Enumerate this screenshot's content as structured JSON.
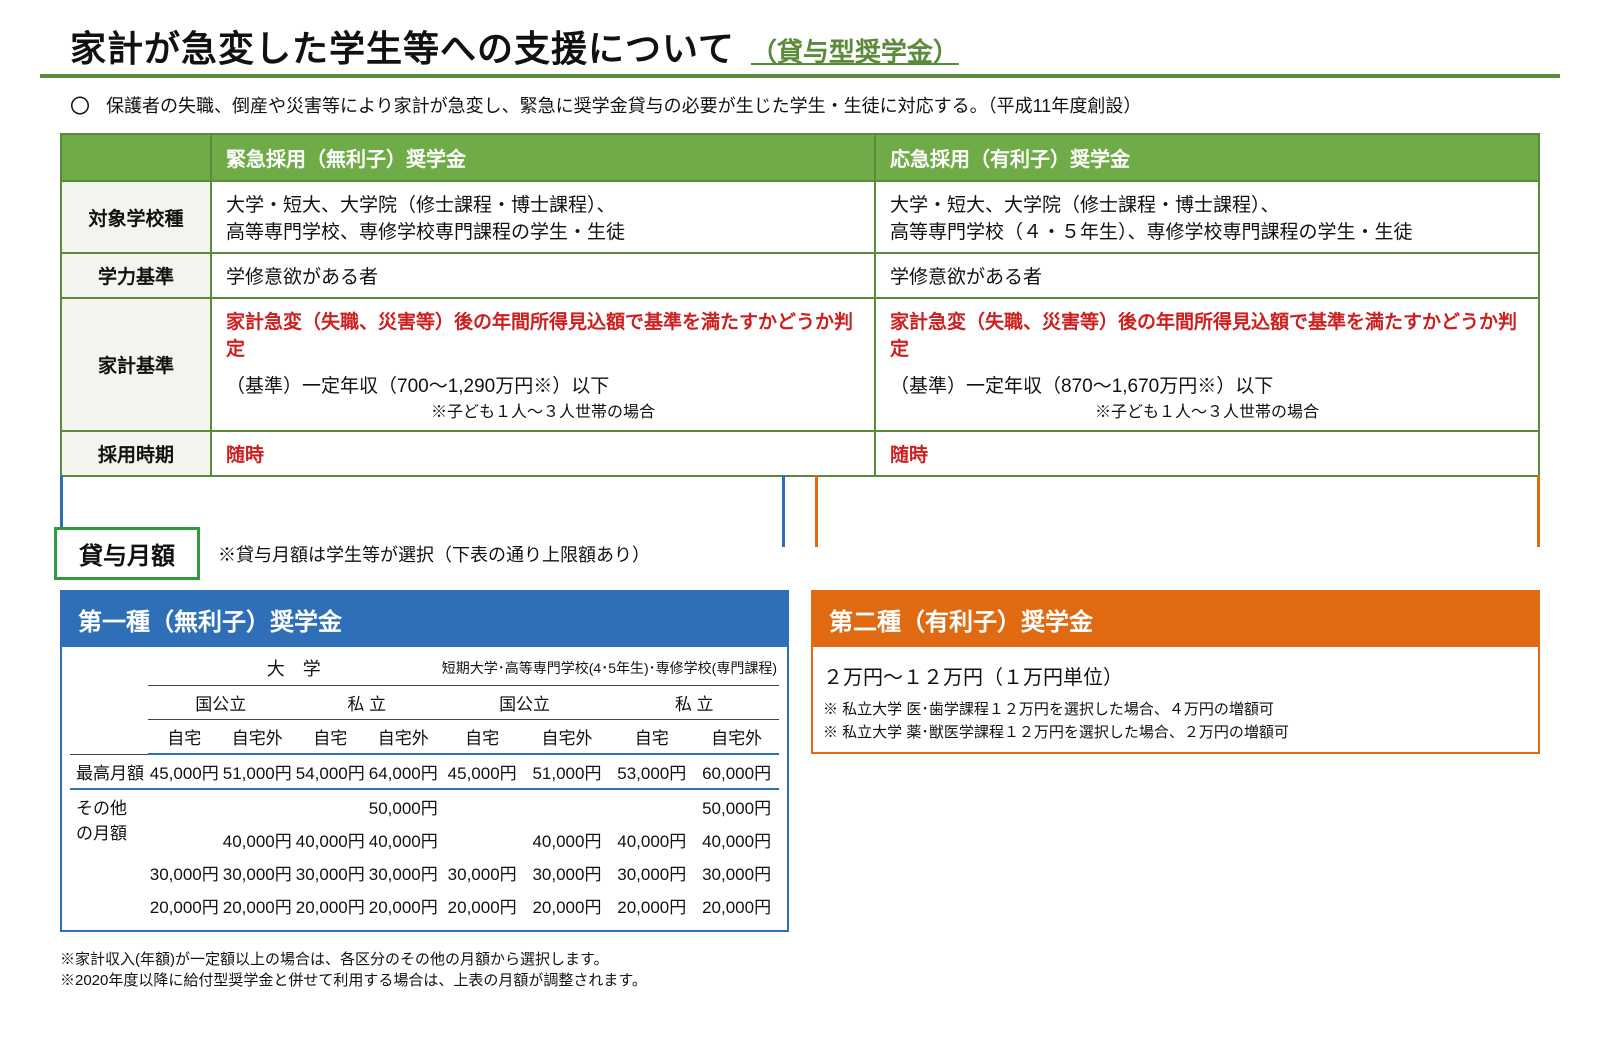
{
  "title": {
    "main": "家計が急変した学生等への支援について",
    "sub": "（貸与型奨学金）"
  },
  "intro": {
    "bullet": "〇",
    "text": "保護者の失職、倒産や災害等により家計が急変し、緊急に奨学金貸与の必要が生じた学生・生徒に対応する。（平成11年度創設）"
  },
  "cmp": {
    "head_left": "緊急採用（無利子）奨学金",
    "head_right": "応急採用（有利子）奨学金",
    "rows": {
      "target": {
        "label": "対象学校種",
        "left": "大学・短大、大学院（修士課程・博士課程）、\n高等専門学校、専修学校専門課程の学生・生徒",
        "right": "大学・短大、大学院（修士課程・博士課程）、\n高等専門学校（４・５年生）、専修学校専門課程の学生・生徒"
      },
      "academic": {
        "label": "学力基準",
        "left": "学修意欲がある者",
        "right": "学修意欲がある者"
      },
      "income": {
        "label": "家計基準",
        "left_title": "家計急変（失職、災害等）後の年間所得見込額で基準を満たすかどうか判定",
        "left_sub": "（基準）一定年収（700～1,290万円※）以下",
        "left_note": "※子ども１人～３人世帯の場合",
        "right_title": "家計急変（失職、災害等）後の年間所得見込額で基準を満たすかどうか判定",
        "right_sub": "（基準）一定年収（870～1,670万円※）以下",
        "right_note": "※子ども１人～３人世帯の場合"
      },
      "timing": {
        "label": "採用時期",
        "left": "随時",
        "right": "随時"
      }
    }
  },
  "tag": {
    "label": "貸与月額",
    "note": "※貸与月額は学生等が選択（下表の通り上限額あり）"
  },
  "left_panel": {
    "title": "第一種（無利子）奨学金",
    "group_a": "大　学",
    "group_b": "短期大学･高等専門学校(4･5年生)･専修学校(専門課程)",
    "sub_pub": "国公立",
    "sub_pri": "私 立",
    "leaf_home": "自宅",
    "leaf_away": "自宅外",
    "row_max": "最高月額",
    "row_other": "その他\nの月額",
    "max": [
      "45,000円",
      "51,000円",
      "54,000円",
      "64,000円",
      "45,000円",
      "51,000円",
      "53,000円",
      "60,000円"
    ],
    "other": [
      [
        "",
        "",
        "",
        "50,000円",
        "",
        "",
        "",
        "50,000円"
      ],
      [
        "",
        "40,000円",
        "40,000円",
        "40,000円",
        "",
        "40,000円",
        "40,000円",
        "40,000円"
      ],
      [
        "30,000円",
        "30,000円",
        "30,000円",
        "30,000円",
        "30,000円",
        "30,000円",
        "30,000円",
        "30,000円"
      ],
      [
        "20,000円",
        "20,000円",
        "20,000円",
        "20,000円",
        "20,000円",
        "20,000円",
        "20,000円",
        "20,000円"
      ]
    ]
  },
  "right_panel": {
    "title": "第二種（有利子）奨学金",
    "line1": "２万円～１２万円（１万円単位）",
    "note1": "※ 私立大学 医･歯学課程１２万円を選択した場合、４万円の増額可",
    "note2": "※ 私立大学 薬･獣医学課程１２万円を選択した場合、２万円の増額可"
  },
  "footnotes": {
    "f1": "※家計収入(年額)が一定額以上の場合は、各区分のその他の月額から選択します。",
    "f2": "※2020年度以降に給付型奨学金と併せて利用する場合は、上表の月額が調整されます。"
  },
  "colors": {
    "green": "#5a8a3a",
    "green_fill": "#6fab47",
    "blue": "#2e6fb7",
    "orange": "#e06a12",
    "red": "#cc1f1f"
  }
}
